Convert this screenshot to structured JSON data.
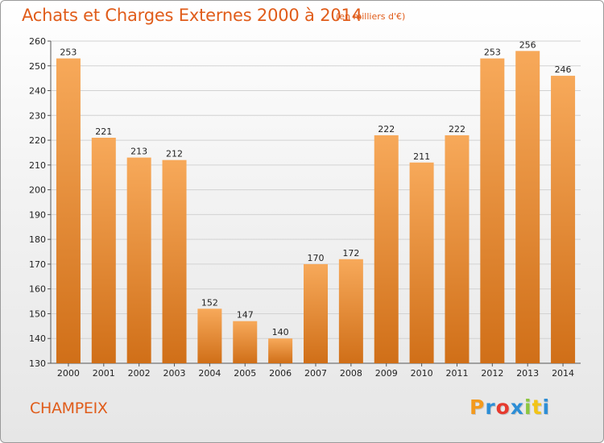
{
  "title": "Achats et Charges Externes 2000 à 2014",
  "subtitle": "(en milliers d'€)",
  "commune": "CHAMPEIX",
  "logo": {
    "letters": [
      "P",
      "r",
      "o",
      "x",
      "i",
      "t",
      "i"
    ],
    "colors": [
      "#f39a1e",
      "#2d8ed6",
      "#e63a2e",
      "#2d8ed6",
      "#8cc63f",
      "#f2c418",
      "#2d8ed6"
    ]
  },
  "colors": {
    "accent": "#e05c1a",
    "bar_light": "#f7a95a",
    "bar_dark": "#d06f18"
  },
  "chart_data": {
    "type": "bar",
    "categories": [
      "2000",
      "2001",
      "2002",
      "2003",
      "2004",
      "2005",
      "2006",
      "2007",
      "2008",
      "2009",
      "2010",
      "2011",
      "2012",
      "2013",
      "2014"
    ],
    "values": [
      253,
      221,
      213,
      212,
      152,
      147,
      140,
      170,
      172,
      222,
      211,
      222,
      253,
      256,
      246
    ],
    "yticks": [
      130,
      140,
      150,
      160,
      170,
      180,
      190,
      200,
      210,
      220,
      230,
      240,
      250,
      260
    ],
    "ylim": [
      130,
      260
    ],
    "grid": true,
    "data_labels": true
  }
}
